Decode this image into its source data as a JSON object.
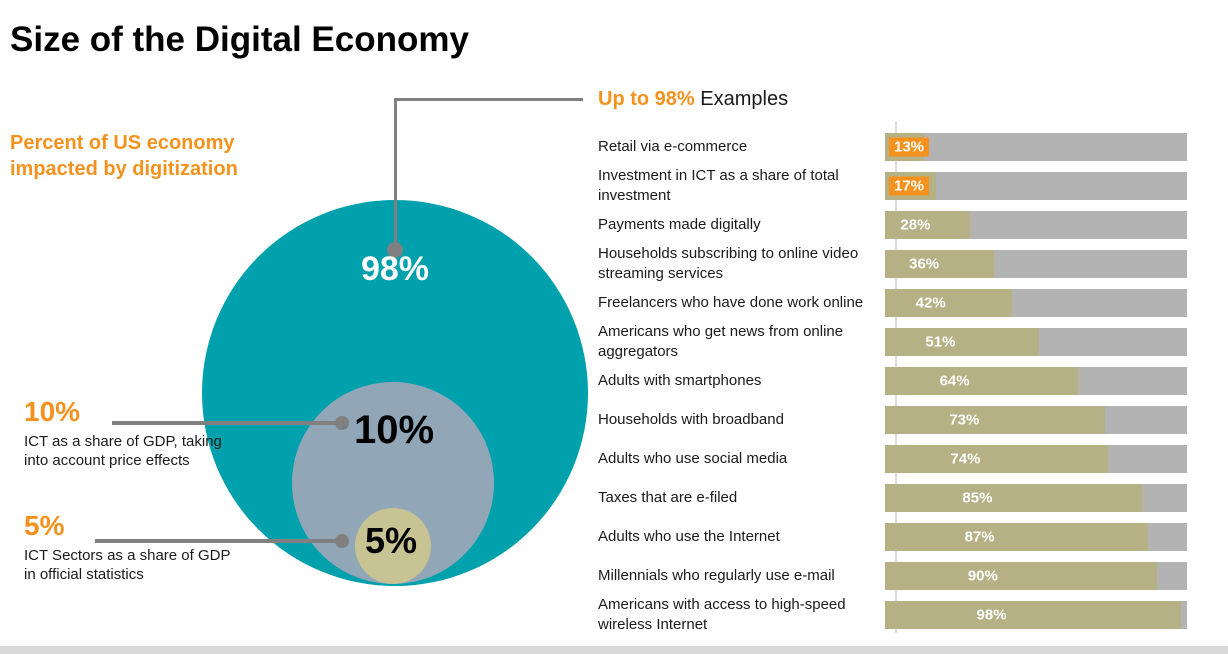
{
  "title": "Size of the Digital Economy",
  "left_panel": {
    "subtitle": "Percent of US economy impacted by digitization",
    "circles": {
      "outer_label": "98%",
      "middle_label": "10%",
      "inner_label": "5%"
    },
    "annotations": [
      {
        "value": "10%",
        "description": "ICT as a share of GDP, taking into account price effects"
      },
      {
        "value": "5%",
        "description": "ICT Sectors as a share of GDP in official statistics"
      }
    ]
  },
  "right_panel": {
    "header_highlight": "Up to 98%",
    "header_rest": "Examples",
    "rows": [
      {
        "label": "Retail via e-commerce",
        "value": 13,
        "display": "13%",
        "highlight": true
      },
      {
        "label": "Investment in ICT as a share of total investment",
        "value": 17,
        "display": "17%",
        "highlight": true
      },
      {
        "label": "Payments made digitally",
        "value": 28,
        "display": "28%",
        "highlight": false
      },
      {
        "label": "Households subscribing to online video streaming services",
        "value": 36,
        "display": "36%",
        "highlight": false
      },
      {
        "label": "Freelancers who have done work online",
        "value": 42,
        "display": "42%",
        "highlight": false
      },
      {
        "label": "Americans who get news from online aggregators",
        "value": 51,
        "display": "51%",
        "highlight": false
      },
      {
        "label": "Adults with smartphones",
        "value": 64,
        "display": "64%",
        "highlight": false
      },
      {
        "label": "Households with broadband",
        "value": 73,
        "display": "73%",
        "highlight": false
      },
      {
        "label": "Adults who use social media",
        "value": 74,
        "display": "74%",
        "highlight": false
      },
      {
        "label": "Taxes that are e-filed",
        "value": 85,
        "display": "85%",
        "highlight": false
      },
      {
        "label": "Adults who use the Internet",
        "value": 87,
        "display": "87%",
        "highlight": false
      },
      {
        "label": "Millennials who regularly use e-mail",
        "value": 90,
        "display": "90%",
        "highlight": false
      },
      {
        "label": "Americans with access to high-speed wireless Internet",
        "value": 98,
        "display": "98%",
        "highlight": false
      }
    ]
  },
  "colors": {
    "accent_orange": "#F5921E",
    "outer_circle_teal": "#00A1AC",
    "middle_circle_bluegray": "#91A7B8",
    "inner_circle_khaki": "#C8C392",
    "bar_fill_khaki": "#B5B185",
    "bar_track_gray": "#B3B3B3",
    "connector_gray": "#808080",
    "bottom_strip_gray": "#D9D9D9"
  },
  "chart_data": [
    {
      "type": "bar",
      "orientation": "horizontal",
      "title": "Up to 98% Examples",
      "categories": [
        "Retail via e-commerce",
        "Investment in ICT as a share of total investment",
        "Payments made digitally",
        "Households subscribing to online video streaming services",
        "Freelancers who have done work online",
        "Americans who get news from online aggregators",
        "Adults with smartphones",
        "Households with broadband",
        "Adults who use social media",
        "Taxes that are e-filed",
        "Adults who use the Internet",
        "Millennials who regularly use e-mail",
        "Americans with access to high-speed wireless Internet"
      ],
      "values": [
        13,
        17,
        28,
        36,
        42,
        51,
        64,
        73,
        74,
        85,
        87,
        90,
        98
      ],
      "xlabel": "",
      "ylabel": "",
      "xlim": [
        0,
        100
      ],
      "grid": false,
      "legend": false,
      "data_labels": [
        "13%",
        "17%",
        "28%",
        "36%",
        "42%",
        "51%",
        "64%",
        "73%",
        "74%",
        "85%",
        "87%",
        "90%",
        "98%"
      ],
      "highlighted_categories": [
        "Retail via e-commerce",
        "Investment in ICT as a share of total investment"
      ]
    },
    {
      "type": "pie",
      "variant": "nested-proportional-circles",
      "title": "Percent of US economy impacted by digitization",
      "categories": [
        "Up to 98%",
        "10%",
        "5%"
      ],
      "values": [
        98,
        10,
        5
      ],
      "annotations": [
        "ICT as a share of GDP, taking into account price effects",
        "ICT Sectors as a share of GDP in official statistics"
      ],
      "legend": false
    }
  ]
}
